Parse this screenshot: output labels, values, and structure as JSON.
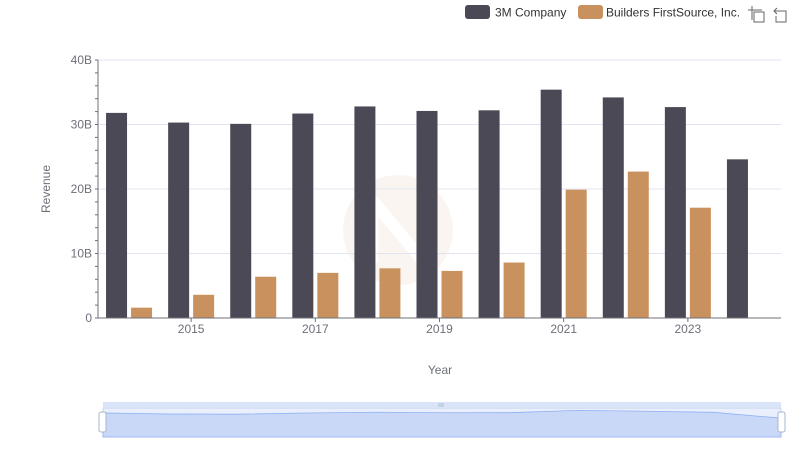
{
  "chart_data": {
    "type": "bar",
    "x": [
      2014,
      2015,
      2016,
      2017,
      2018,
      2019,
      2020,
      2021,
      2022,
      2023,
      2024
    ],
    "x_tick_labels": [
      "2015",
      "2017",
      "2019",
      "2021",
      "2023"
    ],
    "series": [
      {
        "name": "3M Company",
        "color": "#4a4955",
        "values": [
          31.8,
          30.3,
          30.1,
          31.7,
          32.8,
          32.1,
          32.2,
          35.4,
          34.2,
          32.7,
          24.6
        ]
      },
      {
        "name": "Builders FirstSource, Inc.",
        "color": "#c9915d",
        "values": [
          1.6,
          3.6,
          6.4,
          7.0,
          7.7,
          7.3,
          8.6,
          19.9,
          22.7,
          17.1,
          null
        ]
      }
    ],
    "xlabel": "Year",
    "ylabel": "Revenue",
    "ylim": [
      0,
      40
    ],
    "y_ticks": [
      {
        "value": 0,
        "label": "0"
      },
      {
        "value": 10,
        "label": "10B"
      },
      {
        "value": 20,
        "label": "20B"
      },
      {
        "value": 30,
        "label": "30B"
      },
      {
        "value": 40,
        "label": "40B"
      }
    ],
    "grid": true,
    "legend_position": "top-right",
    "toolbar_icons": [
      "zoom-icon",
      "restore-icon"
    ],
    "has_data_zoom_slider": true
  }
}
